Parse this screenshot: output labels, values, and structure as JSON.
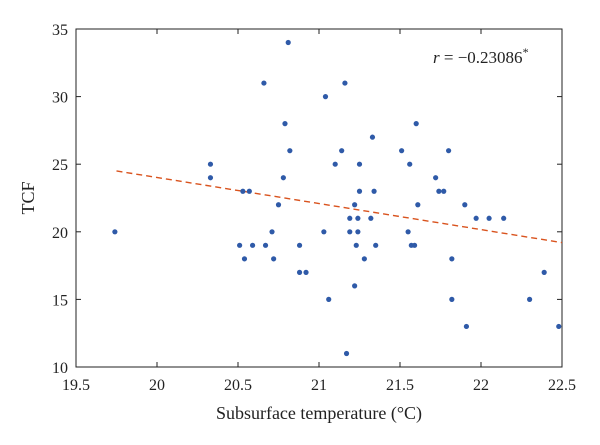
{
  "chart_data": {
    "type": "scatter",
    "xlabel": "Subsurface temperature (°C)",
    "ylabel": "TCF",
    "xlim": [
      19.5,
      22.5
    ],
    "ylim": [
      10,
      35
    ],
    "xticks": [
      "19.5",
      "20",
      "20.5",
      "21",
      "21.5",
      "22",
      "22.5"
    ],
    "yticks": [
      "10",
      "15",
      "20",
      "25",
      "30",
      "35"
    ],
    "grid": false,
    "annotation": {
      "r_text": "r",
      "value_text": " = −0.23086",
      "superscript": "*"
    },
    "trendline": {
      "x": [
        19.75,
        22.5
      ],
      "y": [
        24.5,
        19.2
      ]
    },
    "colors": {
      "points": "#2f5aa8",
      "trendline": "#d9531e",
      "axis": "#222222"
    },
    "points": [
      {
        "x": 19.74,
        "y": 20
      },
      {
        "x": 20.33,
        "y": 25
      },
      {
        "x": 20.33,
        "y": 24
      },
      {
        "x": 20.51,
        "y": 19
      },
      {
        "x": 20.53,
        "y": 23
      },
      {
        "x": 20.54,
        "y": 18
      },
      {
        "x": 20.57,
        "y": 23
      },
      {
        "x": 20.59,
        "y": 19
      },
      {
        "x": 20.66,
        "y": 31
      },
      {
        "x": 20.67,
        "y": 19
      },
      {
        "x": 20.71,
        "y": 20
      },
      {
        "x": 20.72,
        "y": 18
      },
      {
        "x": 20.75,
        "y": 22
      },
      {
        "x": 20.78,
        "y": 24
      },
      {
        "x": 20.79,
        "y": 28
      },
      {
        "x": 20.81,
        "y": 34
      },
      {
        "x": 20.82,
        "y": 26
      },
      {
        "x": 20.88,
        "y": 19
      },
      {
        "x": 20.88,
        "y": 17
      },
      {
        "x": 20.92,
        "y": 17
      },
      {
        "x": 21.03,
        "y": 20
      },
      {
        "x": 21.04,
        "y": 30
      },
      {
        "x": 21.06,
        "y": 15
      },
      {
        "x": 21.1,
        "y": 25
      },
      {
        "x": 21.14,
        "y": 26
      },
      {
        "x": 21.16,
        "y": 31
      },
      {
        "x": 21.17,
        "y": 11
      },
      {
        "x": 21.19,
        "y": 21
      },
      {
        "x": 21.19,
        "y": 20
      },
      {
        "x": 21.22,
        "y": 16
      },
      {
        "x": 21.22,
        "y": 22
      },
      {
        "x": 21.23,
        "y": 19
      },
      {
        "x": 21.24,
        "y": 21
      },
      {
        "x": 21.24,
        "y": 20
      },
      {
        "x": 21.25,
        "y": 23
      },
      {
        "x": 21.25,
        "y": 25
      },
      {
        "x": 21.28,
        "y": 18
      },
      {
        "x": 21.32,
        "y": 21
      },
      {
        "x": 21.33,
        "y": 27
      },
      {
        "x": 21.34,
        "y": 23
      },
      {
        "x": 21.35,
        "y": 19
      },
      {
        "x": 21.51,
        "y": 26
      },
      {
        "x": 21.55,
        "y": 20
      },
      {
        "x": 21.56,
        "y": 25
      },
      {
        "x": 21.57,
        "y": 19
      },
      {
        "x": 21.59,
        "y": 19
      },
      {
        "x": 21.6,
        "y": 28
      },
      {
        "x": 21.61,
        "y": 22
      },
      {
        "x": 21.72,
        "y": 24
      },
      {
        "x": 21.74,
        "y": 23
      },
      {
        "x": 21.77,
        "y": 23
      },
      {
        "x": 21.8,
        "y": 26
      },
      {
        "x": 21.82,
        "y": 18
      },
      {
        "x": 21.82,
        "y": 15
      },
      {
        "x": 21.9,
        "y": 22
      },
      {
        "x": 21.91,
        "y": 13
      },
      {
        "x": 21.97,
        "y": 21
      },
      {
        "x": 22.05,
        "y": 21
      },
      {
        "x": 22.14,
        "y": 21
      },
      {
        "x": 22.3,
        "y": 15
      },
      {
        "x": 22.39,
        "y": 17
      },
      {
        "x": 22.48,
        "y": 13
      }
    ]
  }
}
